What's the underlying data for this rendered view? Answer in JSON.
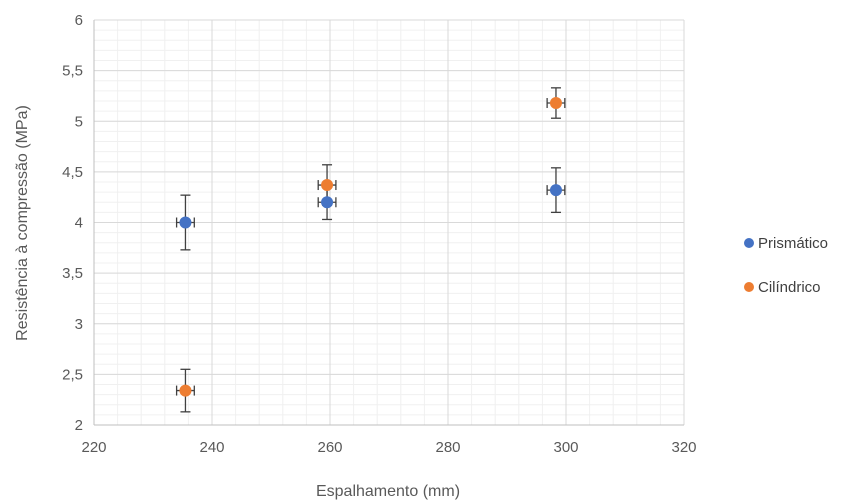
{
  "chart_data": {
    "type": "scatter",
    "xlabel": "Espalhamento (mm)",
    "ylabel": "Resistência à compressão (MPa)",
    "xlim": [
      220,
      320
    ],
    "ylim": [
      2,
      6
    ],
    "x_ticks": [
      "220",
      "240",
      "260",
      "280",
      "300",
      "320"
    ],
    "y_ticks": [
      "2",
      "2,5",
      "3",
      "3,5",
      "4",
      "4,5",
      "5",
      "5,5",
      "6"
    ],
    "grid": "major and minor",
    "legend_position": "right",
    "series": [
      {
        "name": "Prismático",
        "color": "#4472C4",
        "points": [
          {
            "x": 235.5,
            "y": 4.0,
            "y_err": 0.27,
            "x_err": 1.5
          },
          {
            "x": 259.5,
            "y": 4.2,
            "y_err": 0.17,
            "x_err": 1.5
          },
          {
            "x": 298.3,
            "y": 4.32,
            "y_err": 0.22,
            "x_err": 1.5
          }
        ]
      },
      {
        "name": "Cilíndrico",
        "color": "#ED7D31",
        "points": [
          {
            "x": 235.5,
            "y": 2.34,
            "y_err": 0.21,
            "x_err": 1.5
          },
          {
            "x": 259.5,
            "y": 4.37,
            "y_err": 0.2,
            "x_err": 1.5
          },
          {
            "x": 298.3,
            "y": 5.18,
            "y_err": 0.15,
            "x_err": 1.5
          }
        ]
      }
    ]
  }
}
